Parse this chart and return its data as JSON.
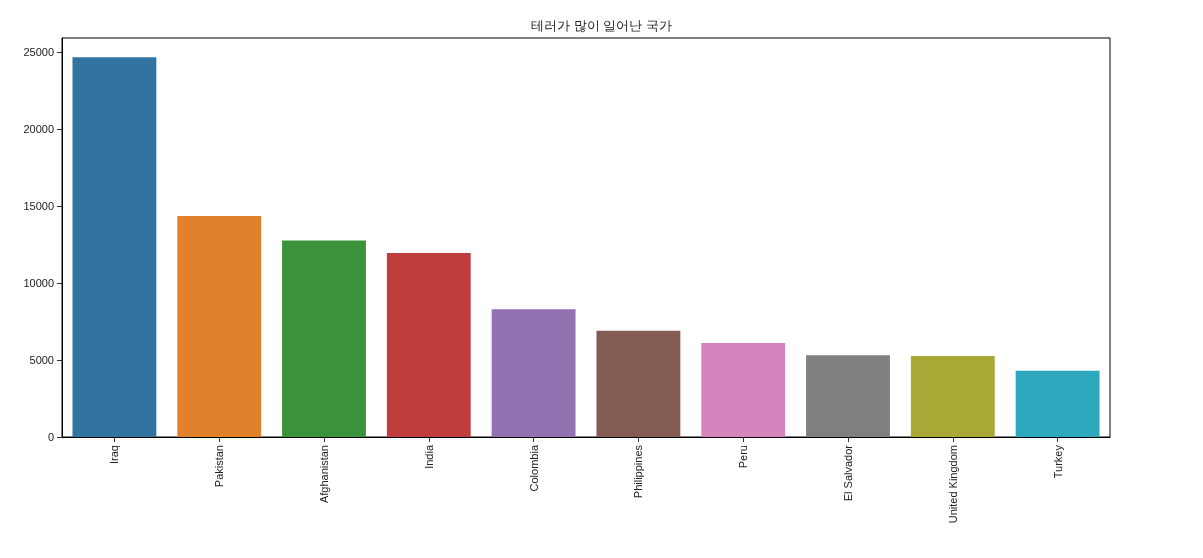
{
  "chart_data": {
    "type": "bar",
    "title": "테러가 많이 일어난 국가",
    "categories": [
      "Iraq",
      "Pakistan",
      "Afghanistan",
      "India",
      "Colombia",
      "Philippines",
      "Peru",
      "El Salvador",
      "United Kingdom",
      "Turkey"
    ],
    "values": [
      24650,
      14350,
      12750,
      11950,
      8300,
      6900,
      6100,
      5300,
      5250,
      4300
    ],
    "colors": [
      "#3274a1",
      "#e1812c",
      "#3a923a",
      "#c03d3e",
      "#9372b2",
      "#845b53",
      "#d684bd",
      "#7f7f7f",
      "#a9aa35",
      "#2ea8bc"
    ],
    "ylim": [
      0,
      25900
    ],
    "yticks": [
      0,
      5000,
      10000,
      15000,
      20000,
      25000
    ],
    "grid": false
  }
}
